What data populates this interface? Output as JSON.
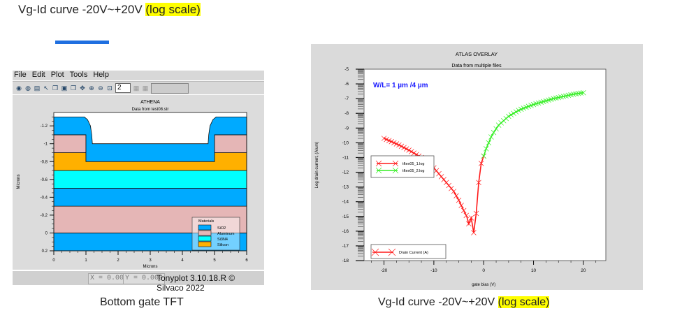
{
  "slide": {
    "title_main": "Vg-Id curve  -20V~+20V ",
    "title_highlight": "(log scale)",
    "caption_left": "Bottom gate TFT",
    "caption_right_main": "Vg-Id curve  -20V~+20V ",
    "caption_right_highlight": "(log scale)",
    "accent_color": "#1f6fe0",
    "highlight_color": "#ffff00"
  },
  "tonyplot": {
    "menu": [
      "File",
      "Edit",
      "Plot",
      "Tools",
      "Help"
    ],
    "toolbar_icons": [
      "load-icon",
      "reload-icon",
      "save-icon",
      "select-icon",
      "copy-icon",
      "paste-icon",
      "window-icon",
      "pan-icon",
      "zoom-in-icon",
      "zoom-out-icon",
      "zoom-box-icon"
    ],
    "plot_number": "2",
    "x_readout": "X = 0.000",
    "y_readout": "Y = 0.000",
    "version": "Tonyplot 3.10.18.R © Silvaco 2022"
  },
  "chart_data": [
    {
      "type": "area",
      "title": "ATHENA",
      "subtitle": "Data from test08.str",
      "xlabel": "Microns",
      "ylabel": "Microns",
      "xlim": [
        0,
        6
      ],
      "ylim": [
        0.2,
        -1.35
      ],
      "y_inverted": true,
      "xticks": [
        "0",
        "1",
        "2",
        "3",
        "4",
        "5",
        "6"
      ],
      "yticks": [
        "-1.2",
        "-1",
        "-0.8",
        "-0.6",
        "-0.4",
        "-0.2",
        "0",
        "0.2"
      ],
      "legend": {
        "title": "Materials",
        "placement": "bottom-right",
        "entries": [
          "SiO2",
          "Aluminum",
          "Si3N4",
          "Silicon"
        ]
      },
      "materials": {
        "SiO2": "#00aaff",
        "Aluminum": "#e5b6b6",
        "Si3N4": "#00ffff",
        "Silicon": "#ffb000"
      },
      "regions": [
        {
          "material": "SiO2",
          "points": [
            [
              0,
              0.2
            ],
            [
              6,
              0.2
            ],
            [
              6,
              0
            ],
            [
              0,
              0
            ]
          ]
        },
        {
          "material": "Aluminum",
          "points": [
            [
              0,
              0
            ],
            [
              6,
              0
            ],
            [
              6,
              -0.3
            ],
            [
              0,
              -0.3
            ]
          ]
        },
        {
          "material": "SiO2",
          "points": [
            [
              0,
              -0.3
            ],
            [
              6,
              -0.3
            ],
            [
              6,
              -0.5
            ],
            [
              0,
              -0.5
            ]
          ]
        },
        {
          "material": "Si3N4",
          "points": [
            [
              0,
              -0.5
            ],
            [
              6,
              -0.5
            ],
            [
              6,
              -0.7
            ],
            [
              0,
              -0.7
            ]
          ]
        },
        {
          "material": "Silicon",
          "points": [
            [
              0,
              -0.7
            ],
            [
              6,
              -0.7
            ],
            [
              6,
              -0.9
            ],
            [
              5,
              -0.9
            ],
            [
              5,
              -0.8
            ],
            [
              1,
              -0.8
            ],
            [
              1,
              -0.9
            ],
            [
              0,
              -0.9
            ]
          ]
        },
        {
          "material": "Aluminum",
          "points": [
            [
              0,
              -0.9
            ],
            [
              1,
              -0.9
            ],
            [
              1,
              -1.1
            ],
            [
              0,
              -1.1
            ]
          ]
        },
        {
          "material": "Aluminum",
          "points": [
            [
              5,
              -0.9
            ],
            [
              6,
              -0.9
            ],
            [
              6,
              -1.1
            ],
            [
              5,
              -1.1
            ]
          ]
        },
        {
          "material": "SiO2",
          "points": [
            [
              0,
              -1.1
            ],
            [
              1,
              -1.1
            ],
            [
              1,
              -0.8
            ],
            [
              5,
              -0.8
            ],
            [
              5,
              -1.1
            ],
            [
              6,
              -1.1
            ],
            [
              6,
              -1.3
            ],
            [
              5.05,
              -1.3
            ],
            [
              4.95,
              -1.27
            ],
            [
              4.86,
              -1.2
            ],
            [
              4.82,
              -1.1
            ],
            [
              4.8,
              -1.0
            ],
            [
              1.2,
              -1.0
            ],
            [
              1.18,
              -1.1
            ],
            [
              1.14,
              -1.2
            ],
            [
              1.05,
              -1.27
            ],
            [
              0.95,
              -1.3
            ],
            [
              0,
              -1.3
            ]
          ]
        }
      ]
    },
    {
      "type": "line",
      "title": "ATLAS OVERLAY",
      "subtitle": "Data from multiple files",
      "xlabel": "gate bias (V)",
      "ylabel": "Log drain current, (A/um)",
      "annotation": "W/L= 1 µm /4 µm",
      "annotation_color": "#1a1aff",
      "xlim": [
        -24,
        24.5
      ],
      "ylim": [
        -18,
        -5
      ],
      "xticks": [
        "-20",
        "-10",
        "0",
        "10",
        "20"
      ],
      "yticks": [
        "-5",
        "-6",
        "-7",
        "-8",
        "-9",
        "-10",
        "-11",
        "-12",
        "-13",
        "-14",
        "-15",
        "-16",
        "-17",
        "-18"
      ],
      "legend": {
        "placement": "middle-left",
        "entries": [
          "tftex05_1.log",
          "tftex05_2.log"
        ]
      },
      "legend2": {
        "placement": "bottom-left",
        "entries": [
          "Drain Current (A)"
        ]
      },
      "series": [
        {
          "name": "tftex05_1.log",
          "color": "#ff1a1a",
          "x": [
            -20,
            -17,
            -15,
            -13,
            -12,
            -10,
            -8,
            -6,
            -5,
            -4,
            -3.4,
            -3,
            -2.5,
            -2,
            -1.5,
            -1,
            -0.5,
            0
          ],
          "y": [
            -9.7,
            -10.15,
            -10.5,
            -10.9,
            -11.1,
            -11.7,
            -12.5,
            -13.3,
            -13.9,
            -14.6,
            -15.0,
            -15.5,
            -15.1,
            -16.1,
            -14.8,
            -12.7,
            -11.4,
            -10.9
          ]
        },
        {
          "name": "tftex05_2.log",
          "color": "#33ee22",
          "x": [
            0,
            0.5,
            1,
            1.5,
            2,
            3,
            4,
            5,
            6,
            7,
            8,
            10,
            12,
            14,
            16,
            18,
            20
          ],
          "y": [
            -10.9,
            -10.4,
            -10.0,
            -9.6,
            -9.3,
            -8.8,
            -8.5,
            -8.2,
            -8.0,
            -7.8,
            -7.65,
            -7.4,
            -7.2,
            -7.0,
            -6.85,
            -6.7,
            -6.6
          ]
        }
      ]
    }
  ]
}
